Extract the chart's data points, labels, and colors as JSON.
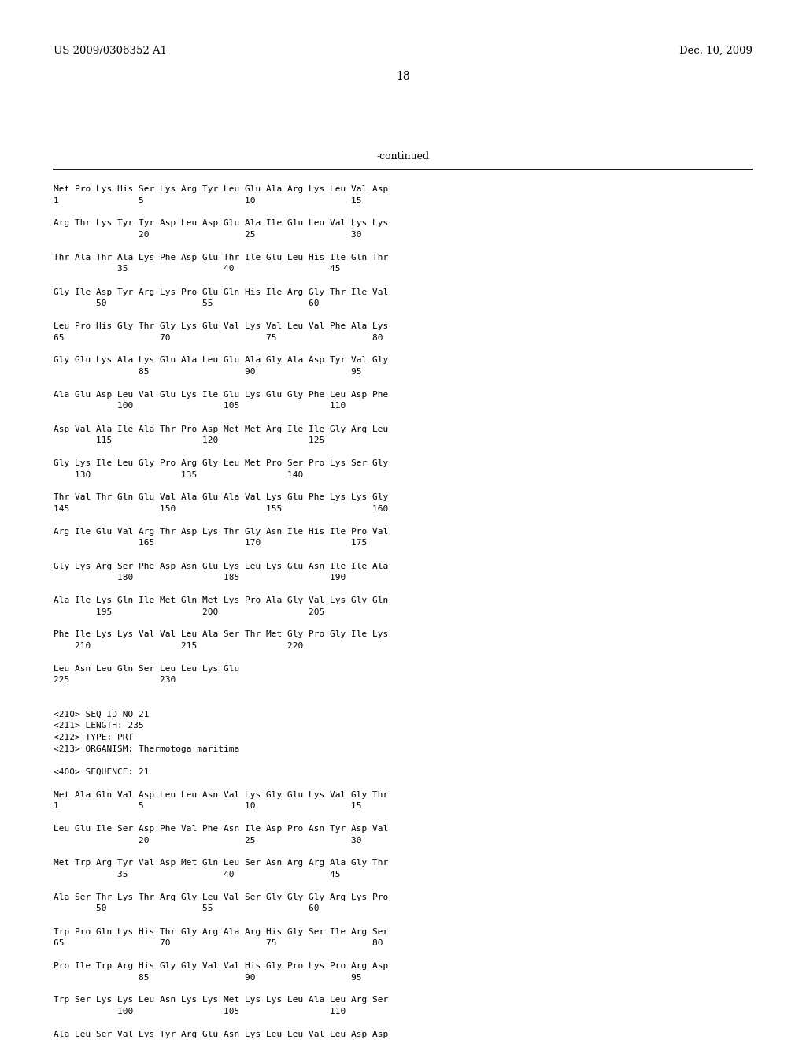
{
  "header_left": "US 2009/0306352 A1",
  "header_right": "Dec. 10, 2009",
  "page_number": "18",
  "continued_label": "-continued",
  "background_color": "#ffffff",
  "text_color": "#000000",
  "font_size": 8.0,
  "lines": [
    "Met Pro Lys His Ser Lys Arg Tyr Leu Glu Ala Arg Lys Leu Val Asp",
    "1               5                   10                  15",
    "",
    "Arg Thr Lys Tyr Tyr Asp Leu Asp Glu Ala Ile Glu Leu Val Lys Lys",
    "                20                  25                  30",
    "",
    "Thr Ala Thr Ala Lys Phe Asp Glu Thr Ile Glu Leu His Ile Gln Thr",
    "            35                  40                  45",
    "",
    "Gly Ile Asp Tyr Arg Lys Pro Glu Gln His Ile Arg Gly Thr Ile Val",
    "        50                  55                  60",
    "",
    "Leu Pro His Gly Thr Gly Lys Glu Val Lys Val Leu Val Phe Ala Lys",
    "65                  70                  75                  80",
    "",
    "Gly Glu Lys Ala Lys Glu Ala Leu Glu Ala Gly Ala Asp Tyr Val Gly",
    "                85                  90                  95",
    "",
    "Ala Glu Asp Leu Val Glu Lys Ile Glu Lys Glu Gly Phe Leu Asp Phe",
    "            100                 105                 110",
    "",
    "Asp Val Ala Ile Ala Thr Pro Asp Met Met Arg Ile Ile Gly Arg Leu",
    "        115                 120                 125",
    "",
    "Gly Lys Ile Leu Gly Pro Arg Gly Leu Met Pro Ser Pro Lys Ser Gly",
    "    130                 135                 140",
    "",
    "Thr Val Thr Gln Glu Val Ala Glu Ala Val Lys Glu Phe Lys Lys Gly",
    "145                 150                 155                 160",
    "",
    "Arg Ile Glu Val Arg Thr Asp Lys Thr Gly Asn Ile His Ile Pro Val",
    "                165                 170                 175",
    "",
    "Gly Lys Arg Ser Phe Asp Asn Glu Lys Leu Lys Glu Asn Ile Ile Ala",
    "            180                 185                 190",
    "",
    "Ala Ile Lys Gln Ile Met Gln Met Lys Pro Ala Gly Val Lys Gly Gln",
    "        195                 200                 205",
    "",
    "Phe Ile Lys Lys Val Val Leu Ala Ser Thr Met Gly Pro Gly Ile Lys",
    "    210                 215                 220",
    "",
    "Leu Asn Leu Gln Ser Leu Leu Lys Glu",
    "225                 230",
    "",
    "",
    "<210> SEQ ID NO 21",
    "<211> LENGTH: 235",
    "<212> TYPE: PRT",
    "<213> ORGANISM: Thermotoga maritima",
    "",
    "<400> SEQUENCE: 21",
    "",
    "Met Ala Gln Val Asp Leu Leu Asn Val Lys Gly Glu Lys Val Gly Thr",
    "1               5                   10                  15",
    "",
    "Leu Glu Ile Ser Asp Phe Val Phe Asn Ile Asp Pro Asn Tyr Asp Val",
    "                20                  25                  30",
    "",
    "Met Trp Arg Tyr Val Asp Met Gln Leu Ser Asn Arg Arg Ala Gly Thr",
    "            35                  40                  45",
    "",
    "Ala Ser Thr Lys Thr Arg Gly Leu Val Ser Gly Gly Gly Arg Lys Pro",
    "        50                  55                  60",
    "",
    "Trp Pro Gln Lys His Thr Gly Arg Ala Arg His Gly Ser Ile Arg Ser",
    "65                  70                  75                  80",
    "",
    "Pro Ile Trp Arg His Gly Gly Val Val His Gly Pro Lys Pro Arg Asp",
    "                85                  90                  95",
    "",
    "Trp Ser Lys Lys Leu Asn Lys Lys Met Lys Lys Leu Ala Leu Arg Ser",
    "            100                 105                 110",
    "",
    "Ala Leu Ser Val Lys Tyr Arg Glu Asn Lys Leu Leu Val Leu Asp Asp"
  ]
}
